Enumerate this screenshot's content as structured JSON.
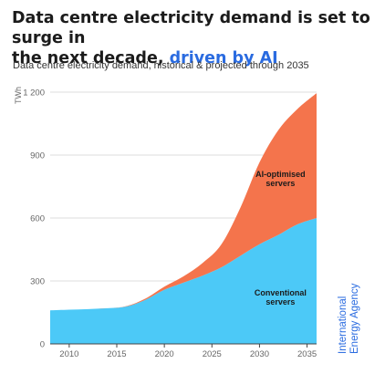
{
  "title": {
    "line1": "Data centre electricity demand is set to surge in",
    "line2_plain": "the next decade,",
    "line2_accent": "driven by AI",
    "accent_color": "#2a6be0"
  },
  "subtitle": "Data centre electricity demand, historical & projected through 2035",
  "source": [
    "International",
    "Energy Agency"
  ],
  "chart_data": {
    "type": "area",
    "stacked": true,
    "ylabel": "TWh",
    "xlabel": "",
    "xlim": [
      2008,
      2036
    ],
    "ylim": [
      0,
      1200
    ],
    "x_ticks": [
      2010,
      2015,
      2020,
      2025,
      2030,
      2035
    ],
    "y_ticks": [
      0,
      300,
      600,
      900,
      1200
    ],
    "y_tick_labels": [
      "0",
      "300",
      "600",
      "900",
      "1 200"
    ],
    "grid": "horizontal",
    "x": [
      2008,
      2010,
      2012,
      2014,
      2016,
      2018,
      2020,
      2022,
      2024,
      2026,
      2028,
      2030,
      2032,
      2034,
      2036
    ],
    "series": [
      {
        "name": "Conventional servers",
        "color": "#4cc9f7",
        "values": [
          160,
          163,
          166,
          170,
          178,
          210,
          258,
          292,
          325,
          365,
          420,
          475,
          520,
          570,
          600
        ]
      },
      {
        "name": "AI-optimised servers",
        "color": "#f4744c",
        "values": [
          0,
          0,
          0,
          0,
          2,
          6,
          15,
          30,
          60,
          110,
          230,
          390,
          500,
          550,
          595
        ]
      }
    ],
    "area_labels": [
      {
        "text": [
          "Conventional",
          "servers"
        ],
        "x": 2032.2,
        "y": 230
      },
      {
        "text": [
          "AI-optimised",
          "servers"
        ],
        "x": 2032.2,
        "y": 795
      }
    ]
  }
}
